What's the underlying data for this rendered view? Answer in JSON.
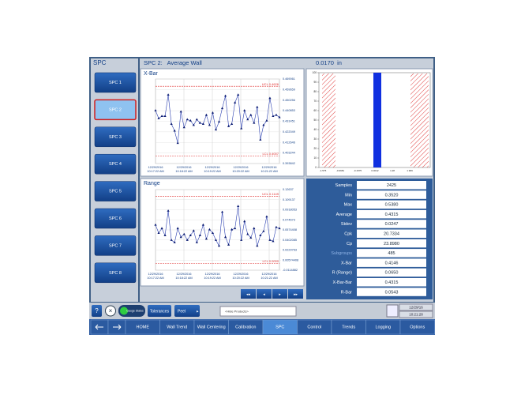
{
  "sidebar": {
    "title": "SPC",
    "buttons": [
      "SPC 1",
      "SPC 2",
      "SPC 3",
      "SPC 4",
      "SPC 5",
      "SPC 6",
      "SPC 7",
      "SPC 8"
    ],
    "selected": 1
  },
  "header": {
    "title": "SPC 2:   Average Wall",
    "value": "0.0170  in"
  },
  "xbar_chart": {
    "title": "X-Bar",
    "values": [
      0.441,
      0.434,
      0.436,
      0.436,
      0.455,
      0.429,
      0.423,
      0.412,
      0.44,
      0.426,
      0.433,
      0.432,
      0.428,
      0.433,
      0.43,
      0.429,
      0.437,
      0.428,
      0.439,
      0.424,
      0.431,
      0.443,
      0.454,
      0.427,
      0.429,
      0.448,
      0.455,
      0.425,
      0.441,
      0.433,
      0.437,
      0.43,
      0.444,
      0.415,
      0.428,
      0.432,
      0.452,
      0.436,
      0.437,
      0.435
    ],
    "ylim": [
      0.393842,
      0.469061
    ],
    "yticks": [
      0.393842,
      0.403244,
      0.412646,
      0.422049,
      0.431451,
      0.440853,
      0.450256,
      0.459659,
      0.469061
    ],
    "ucl": {
      "value": 0.4626,
      "label": "UCL 0.4626"
    },
    "lcl": {
      "value": 0.4007,
      "label": "LCL 0.4007"
    },
    "x_labels": [
      {
        "date": "12/29/2016",
        "time": "10:17:22 AM"
      },
      {
        "date": "12/29/2016",
        "time": "10:18:22 AM"
      },
      {
        "date": "12/29/2016",
        "time": "10:19:22 AM"
      },
      {
        "date": "12/29/2016",
        "time": "10:20:22 AM"
      },
      {
        "date": "12/29/2016",
        "time": "10:21:22 AM"
      }
    ]
  },
  "range_chart": {
    "title": "Range",
    "values": [
      0.066,
      0.052,
      0.06,
      0.048,
      0.09,
      0.04,
      0.036,
      0.06,
      0.045,
      0.05,
      0.04,
      0.048,
      0.056,
      0.036,
      0.048,
      0.066,
      0.042,
      0.058,
      0.052,
      0.04,
      0.03,
      0.088,
      0.045,
      0.032,
      0.058,
      0.06,
      0.098,
      0.04,
      0.072,
      0.05,
      0.044,
      0.06,
      0.03,
      0.048,
      0.055,
      0.08,
      0.04,
      0.038,
      0.062,
      0.06
    ],
    "ylim": [
      -0.0114882,
      0.12637
    ],
    "yticks": [
      -0.0114882,
      0.00574408,
      0.0229763,
      0.0402085,
      0.0574408,
      0.074673,
      0.0918053,
      0.109137,
      0.12637
    ],
    "ucl": {
      "value": 0.1149,
      "label": "UCL 0.1149"
    },
    "lcl": {
      "value": 0,
      "label": "LCL 0.0000"
    },
    "x_labels": [
      {
        "date": "12/29/2016",
        "time": "10:17:22 AM"
      },
      {
        "date": "12/29/2016",
        "time": "10:18:22 AM"
      },
      {
        "date": "12/29/2016",
        "time": "10:19:22 AM"
      },
      {
        "date": "12/29/2016",
        "time": "10:20:22 AM"
      },
      {
        "date": "12/29/2016",
        "time": "10:21:22 AM"
      }
    ]
  },
  "histogram": {
    "ylim": [
      0,
      100
    ],
    "yticks": [
      0,
      10,
      20,
      30,
      40,
      50,
      60,
      70,
      80,
      90,
      100
    ],
    "xticks": [
      "-1.575",
      "-0.9681",
      "-0.1575",
      "0.0012",
      "1.28",
      "1.969"
    ],
    "bar_value": 100
  },
  "stats": {
    "rows": [
      [
        "Samples",
        "2425"
      ],
      [
        "Min",
        "0.3520"
      ],
      [
        "Max",
        "0.5380"
      ],
      [
        "Average",
        "0.4315"
      ],
      [
        "Stdev",
        "0.0247"
      ],
      [
        "Cpk",
        "20.7334"
      ],
      [
        "Cp",
        "23.8980"
      ],
      [
        "Subgroups",
        "485"
      ],
      [
        "X-Bar",
        "0.4146"
      ],
      [
        "R (Range)",
        "0.0650"
      ],
      [
        "X-Bar-Bar",
        "0.4315"
      ],
      [
        "R-Bar",
        "0.0543"
      ]
    ]
  },
  "toolbar": {
    "gauge_status": "Gauge Status",
    "tolerances": "Tolerances",
    "profile": "Peel",
    "product": "<Hide Products>",
    "date": "12/29/16",
    "time": "10:21:28"
  },
  "nav": {
    "items": [
      "HOME",
      "Wall Trend",
      "Wall Centering",
      "Calibration",
      "SPC",
      "Control",
      "Trends",
      "Logging",
      "Options"
    ],
    "selected": 4
  }
}
